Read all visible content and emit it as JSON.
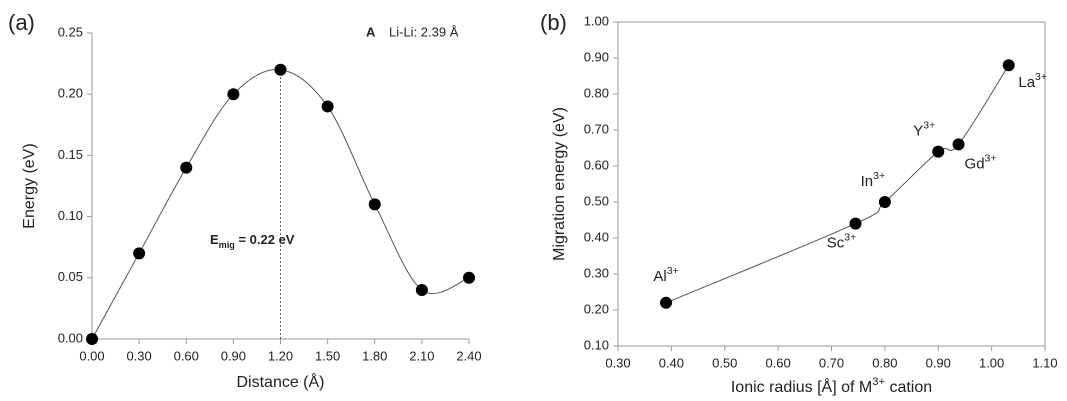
{
  "chart_data": [
    {
      "type": "line",
      "title": "(a)",
      "smooth": true,
      "color": "#555555",
      "marker_color": "#000000",
      "xlabel": "Distance (Å)",
      "ylabel": "Energy (eV)",
      "x": [
        0,
        0.3,
        0.6,
        0.9,
        1.2,
        1.5,
        1.8,
        2.1,
        2.4
      ],
      "y": [
        0,
        0.07,
        0.14,
        0.2,
        0.22,
        0.19,
        0.11,
        0.04,
        0.05
      ],
      "xlim": [
        0,
        2.4
      ],
      "xticks": [
        {
          "value": 0,
          "label": "0.00"
        },
        {
          "value": 0.3,
          "label": "0.30"
        },
        {
          "value": 0.6,
          "label": "0.60"
        },
        {
          "value": 0.9,
          "label": "0.90"
        },
        {
          "value": 1.2,
          "label": "1.20"
        },
        {
          "value": 1.5,
          "label": "1.50"
        },
        {
          "value": 1.8,
          "label": "1.80"
        },
        {
          "value": 2.1,
          "label": "2.10"
        },
        {
          "value": 2.4,
          "label": "2.40"
        }
      ],
      "ylim": [
        0,
        0.25
      ],
      "yticks": [
        {
          "value": 0,
          "label": "0.00"
        },
        {
          "value": 0.05,
          "label": "0.05"
        },
        {
          "value": 0.1,
          "label": "0.10"
        },
        {
          "value": 0.15,
          "label": "0.15"
        },
        {
          "value": 0.2,
          "label": "0.20"
        },
        {
          "value": 0.25,
          "label": "0.25"
        }
      ],
      "frame": false,
      "annotation": {
        "label": "A",
        "text": "Li-Li: 2.39 Å"
      },
      "energy_label": {
        "text": "E",
        "subscript": "mig",
        "rest": " = 0.22 eV"
      }
    },
    {
      "type": "line",
      "title": "(b)",
      "smooth": true,
      "color": "#555555",
      "marker_color": "#000000",
      "xlabel": {
        "text": "Ionic radius [Å] of M",
        "superscript": "3+",
        "rest": " cation"
      },
      "ylabel": "Migration energy (eV)",
      "x": [
        0.39,
        0.745,
        0.8,
        0.9,
        0.938,
        1.032
      ],
      "y": [
        0.22,
        0.44,
        0.5,
        0.64,
        0.66,
        0.88
      ],
      "point_labels": [
        {
          "text": "Al",
          "superscript": "3+"
        },
        {
          "text": "Sc",
          "superscript": "3+"
        },
        {
          "text": "In",
          "superscript": "3+"
        },
        {
          "text": "Y",
          "superscript": "3+"
        },
        {
          "text": "Gd",
          "superscript": "3+"
        },
        {
          "text": "La",
          "superscript": "3+"
        }
      ],
      "xlim": [
        0.3,
        1.1
      ],
      "xticks": [
        {
          "value": 0.3,
          "label": "0.30"
        },
        {
          "value": 0.4,
          "label": "0.40"
        },
        {
          "value": 0.5,
          "label": "0.50"
        },
        {
          "value": 0.6,
          "label": "0.60"
        },
        {
          "value": 0.7,
          "label": "0.70"
        },
        {
          "value": 0.8,
          "label": "0.80"
        },
        {
          "value": 0.9,
          "label": "0.90"
        },
        {
          "value": 1.0,
          "label": "1.00"
        },
        {
          "value": 1.1,
          "label": "1.10"
        }
      ],
      "ylim": [
        0.1,
        1.0
      ],
      "yticks": [
        {
          "value": 0.1,
          "label": "0.10"
        },
        {
          "value": 0.2,
          "label": "0.20"
        },
        {
          "value": 0.3,
          "label": "0.30"
        },
        {
          "value": 0.4,
          "label": "0.40"
        },
        {
          "value": 0.5,
          "label": "0.50"
        },
        {
          "value": 0.6,
          "label": "0.60"
        },
        {
          "value": 0.7,
          "label": "0.70"
        },
        {
          "value": 0.8,
          "label": "0.80"
        },
        {
          "value": 0.9,
          "label": "0.90"
        },
        {
          "value": 1.0,
          "label": "1.00"
        }
      ],
      "frame": true
    }
  ]
}
